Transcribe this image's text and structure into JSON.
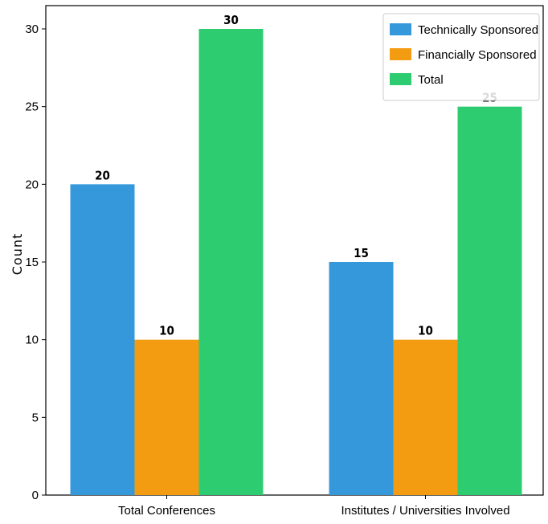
{
  "chart_data": {
    "type": "bar",
    "categories": [
      "Total Conferences",
      "Institutes / Universities Involved"
    ],
    "series": [
      {
        "name": "Technically Sponsored",
        "values": [
          20,
          15
        ],
        "color": "#3498db"
      },
      {
        "name": "Financially Sponsored",
        "values": [
          10,
          10
        ],
        "color": "#f39c12"
      },
      {
        "name": "Total",
        "values": [
          30,
          25
        ],
        "color": "#2ecc71"
      }
    ],
    "ylabel": "Count",
    "xlabel": "",
    "ylim": [
      0,
      31.5
    ],
    "yticks": [
      0,
      5,
      10,
      15,
      20,
      25,
      30
    ],
    "legend_position": "top-right",
    "grid": false
  }
}
